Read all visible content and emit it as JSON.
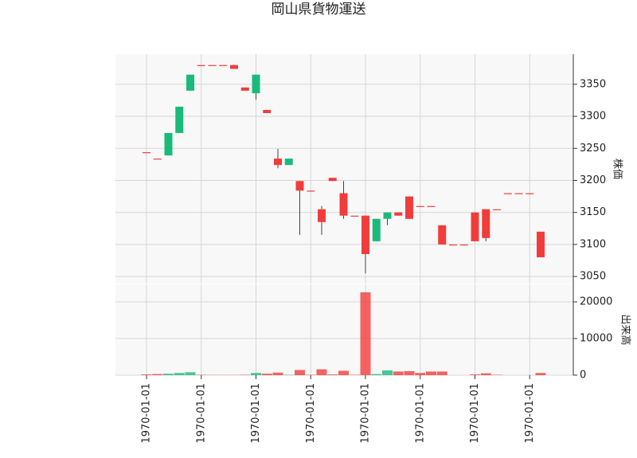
{
  "chart_data": {
    "type": "candlestick",
    "title": "岡山県貨物運送",
    "categories": [
      "1970-01-01",
      null,
      null,
      null,
      null,
      "1970-01-01",
      null,
      null,
      null,
      null,
      "1970-01-01",
      null,
      null,
      null,
      null,
      "1970-01-01",
      null,
      null,
      null,
      null,
      "1970-01-01",
      null,
      null,
      null,
      null,
      "1970-01-01",
      null,
      null,
      null,
      null,
      "1970-01-01",
      null,
      null,
      null,
      null,
      "1970-01-01",
      null
    ],
    "open": [
      3244,
      3234,
      3239,
      3274,
      3340,
      3380,
      3380,
      3380,
      3380,
      3345,
      3336,
      3310,
      3234,
      3224,
      3199,
      3184,
      3155,
      3204,
      3180,
      3145,
      3145,
      3105,
      3140,
      3150,
      3175,
      3160,
      3160,
      3130,
      3100,
      3100,
      3150,
      3155,
      3155,
      3180,
      3180,
      3180,
      3120
    ],
    "high": [
      3244,
      3234,
      3274,
      3315,
      3365,
      3380,
      3380,
      3380,
      3380,
      3345,
      3365,
      3310,
      3249,
      3234,
      3199,
      3184,
      3160,
      3204,
      3199,
      3145,
      3145,
      3140,
      3150,
      3150,
      3175,
      3160,
      3160,
      3130,
      3100,
      3100,
      3150,
      3155,
      3155,
      3180,
      3180,
      3180,
      3120
    ],
    "low": [
      3244,
      3234,
      3239,
      3274,
      3340,
      3380,
      3380,
      3380,
      3374,
      3340,
      3326,
      3305,
      3219,
      3224,
      3115,
      3184,
      3115,
      3199,
      3140,
      3145,
      3055,
      3105,
      3130,
      3145,
      3140,
      3160,
      3160,
      3100,
      3100,
      3100,
      3105,
      3105,
      3155,
      3180,
      3180,
      3180,
      3080
    ],
    "close": [
      3244,
      3234,
      3274,
      3315,
      3365,
      3380,
      3380,
      3380,
      3374,
      3340,
      3365,
      3305,
      3224,
      3234,
      3184,
      3184,
      3135,
      3199,
      3145,
      3145,
      3085,
      3140,
      3150,
      3145,
      3140,
      3160,
      3160,
      3100,
      3100,
      3100,
      3105,
      3110,
      3155,
      3180,
      3180,
      3180,
      3080
    ],
    "up_color": "#1aba7a",
    "down_color": "#f23c3c",
    "ylim": [
      3039,
      3397
    ],
    "yticks": [
      3050,
      3100,
      3150,
      3200,
      3250,
      3300,
      3350
    ],
    "y_label": "株価",
    "volume": {
      "label": "出来高",
      "ylim": [
        0,
        24780
      ],
      "yticks": [
        0,
        10000,
        20000
      ],
      "values": [
        200,
        300,
        400,
        600,
        800,
        100,
        50,
        50,
        50,
        100,
        600,
        400,
        700,
        100,
        1400,
        100,
        1600,
        200,
        1200,
        100,
        22600,
        300,
        1300,
        1000,
        1100,
        600,
        1000,
        1000,
        0,
        0,
        200,
        500,
        100,
        0,
        0,
        0,
        600
      ]
    },
    "grid": true
  }
}
